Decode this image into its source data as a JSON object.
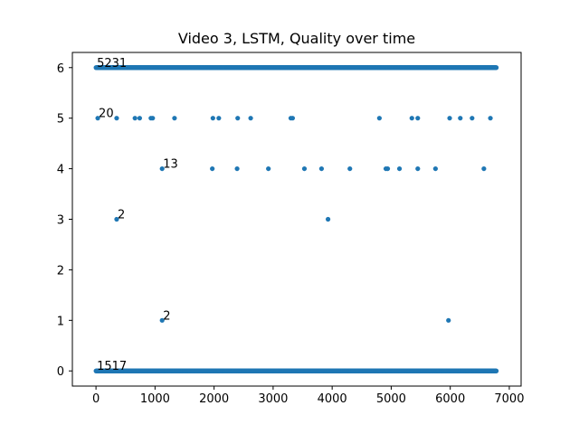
{
  "chart_data": {
    "type": "scatter",
    "title": "Video 3, LSTM, Quality over time",
    "xlabel": "",
    "ylabel": "",
    "xlim": [
      -400,
      7200
    ],
    "ylim": [
      -0.3,
      6.3
    ],
    "xticks": [
      0,
      1000,
      2000,
      3000,
      4000,
      5000,
      6000,
      7000
    ],
    "xtick_labels": [
      "0",
      "1000",
      "2000",
      "3000",
      "4000",
      "5000",
      "6000",
      "7000"
    ],
    "yticks": [
      0,
      1,
      2,
      3,
      4,
      5,
      6
    ],
    "ytick_labels": [
      "0",
      "1",
      "2",
      "3",
      "4",
      "5",
      "6"
    ],
    "grid": false,
    "legend": "none",
    "marker_color": "#1f77b4",
    "x_max": 6780,
    "dense_bands": [
      {
        "y": 6,
        "x_start": 0,
        "x_end": 6780,
        "count": 5231
      },
      {
        "y": 0,
        "x_start": 0,
        "x_end": 6780,
        "count": 1517
      }
    ],
    "points": [
      {
        "x": 30,
        "y": 5
      },
      {
        "x": 350,
        "y": 5
      },
      {
        "x": 660,
        "y": 5
      },
      {
        "x": 740,
        "y": 5
      },
      {
        "x": 930,
        "y": 5
      },
      {
        "x": 960,
        "y": 5
      },
      {
        "x": 1330,
        "y": 5
      },
      {
        "x": 1980,
        "y": 5
      },
      {
        "x": 2080,
        "y": 5
      },
      {
        "x": 2400,
        "y": 5
      },
      {
        "x": 2620,
        "y": 5
      },
      {
        "x": 3300,
        "y": 5
      },
      {
        "x": 3330,
        "y": 5
      },
      {
        "x": 4800,
        "y": 5
      },
      {
        "x": 5350,
        "y": 5
      },
      {
        "x": 5450,
        "y": 5
      },
      {
        "x": 5990,
        "y": 5
      },
      {
        "x": 6170,
        "y": 5
      },
      {
        "x": 6370,
        "y": 5
      },
      {
        "x": 6680,
        "y": 5
      },
      {
        "x": 1120,
        "y": 4
      },
      {
        "x": 1970,
        "y": 4
      },
      {
        "x": 2390,
        "y": 4
      },
      {
        "x": 2920,
        "y": 4
      },
      {
        "x": 3530,
        "y": 4
      },
      {
        "x": 3820,
        "y": 4
      },
      {
        "x": 4300,
        "y": 4
      },
      {
        "x": 4910,
        "y": 4
      },
      {
        "x": 4940,
        "y": 4
      },
      {
        "x": 5140,
        "y": 4
      },
      {
        "x": 5450,
        "y": 4
      },
      {
        "x": 5750,
        "y": 4
      },
      {
        "x": 6570,
        "y": 4
      },
      {
        "x": 350,
        "y": 3
      },
      {
        "x": 3930,
        "y": 3
      },
      {
        "x": 1120,
        "y": 1
      },
      {
        "x": 5970,
        "y": 1
      }
    ],
    "annotations": [
      {
        "text": "5231",
        "x": 0,
        "y": 6
      },
      {
        "text": "20",
        "x": 30,
        "y": 5
      },
      {
        "text": "13",
        "x": 1120,
        "y": 4
      },
      {
        "text": "2",
        "x": 350,
        "y": 3
      },
      {
        "text": "2",
        "x": 1120,
        "y": 1
      },
      {
        "text": "1517",
        "x": 0,
        "y": 0
      }
    ]
  }
}
